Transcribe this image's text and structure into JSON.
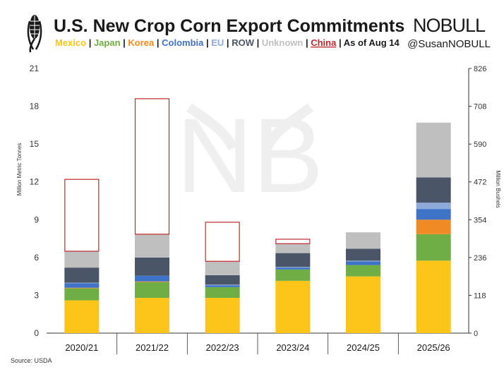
{
  "header": {
    "title": "U.S. New Crop Corn Export Commitments",
    "legend_items": [
      {
        "label": "Mexico",
        "color": "#FDC51A"
      },
      {
        "label": "Japan",
        "color": "#6FAE45"
      },
      {
        "label": "Korea",
        "color": "#F08A24"
      },
      {
        "label": "Colombia",
        "color": "#3F73C8"
      },
      {
        "label": "EU",
        "color": "#8EAADB"
      },
      {
        "label": "ROW",
        "color": "#4A5568"
      },
      {
        "label": "Unknown",
        "color": "#BFBFBF"
      },
      {
        "label": "China",
        "color": "#C0282D"
      }
    ],
    "as_of": "As of Aug 14",
    "separator": "|"
  },
  "brand": {
    "logo_text": "NOBULL",
    "handle": "@SusanNOBULL",
    "watermark": "NB"
  },
  "source": "Source: USDA",
  "chart_data": {
    "type": "bar",
    "stacked": true,
    "categories": [
      "2020/21",
      "2021/22",
      "2022/23",
      "2023/24",
      "2024/25",
      "2025/26"
    ],
    "series": [
      {
        "name": "Mexico",
        "color": "#FDC51A",
        "values": [
          2.6,
          2.8,
          2.8,
          4.15,
          4.5,
          5.75
        ]
      },
      {
        "name": "Japan",
        "color": "#6FAE45",
        "values": [
          0.95,
          1.25,
          0.85,
          0.9,
          0.9,
          2.1
        ]
      },
      {
        "name": "Korea",
        "color": "#F08A24",
        "values": [
          0.05,
          0.05,
          0.0,
          0.0,
          0.0,
          1.15
        ]
      },
      {
        "name": "Colombia",
        "color": "#3F73C8",
        "values": [
          0.35,
          0.45,
          0.15,
          0.15,
          0.3,
          0.85
        ]
      },
      {
        "name": "EU",
        "color": "#8EAADB",
        "values": [
          0.05,
          0.0,
          0.05,
          0.05,
          0.05,
          0.5
        ]
      },
      {
        "name": "ROW",
        "color": "#4A5568",
        "values": [
          1.2,
          1.45,
          0.75,
          1.1,
          0.95,
          2.0
        ]
      },
      {
        "name": "Unknown",
        "color": "#BFBFBF",
        "values": [
          1.3,
          1.85,
          1.1,
          0.75,
          1.3,
          4.35
        ]
      },
      {
        "name": "China",
        "color": "#C0282D",
        "outline": true,
        "values": [
          5.7,
          10.75,
          3.1,
          0.35,
          0.0,
          0.0
        ]
      }
    ],
    "ylabel": "Million Metric Tonnes",
    "ylabel_right": "Million Bushels",
    "ylim": [
      0,
      21
    ],
    "yticks": [
      "0",
      "3",
      "6",
      "9",
      "12",
      "15",
      "18",
      "21"
    ],
    "yticks_right": [
      "0",
      "118",
      "236",
      "354",
      "472",
      "590",
      "708",
      "826"
    ],
    "grid": false,
    "legend": "top"
  }
}
